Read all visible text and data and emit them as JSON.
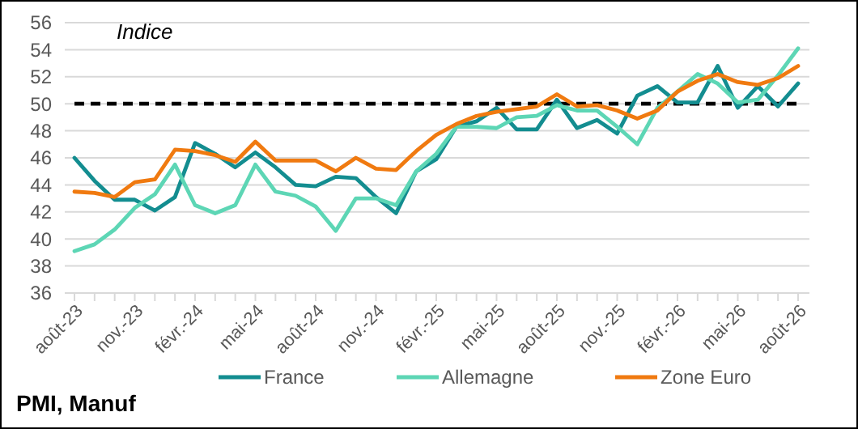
{
  "chart_data": {
    "type": "line",
    "title": "PMI, Manuf",
    "annotations": [
      "Indice"
    ],
    "categories": [
      "août-23",
      null,
      null,
      "nov.-23",
      null,
      null,
      "févr.-24",
      null,
      null,
      "mai-24",
      null,
      null,
      "août-24",
      null,
      null,
      "nov.-24",
      null,
      null,
      "févr.-25",
      null,
      null,
      "mai-25",
      null,
      null,
      "août-25",
      null,
      null,
      "nov.-25",
      null,
      null,
      "févr.-26",
      null,
      null,
      "mai-26",
      null,
      null,
      "août-26"
    ],
    "series": [
      {
        "name": "France",
        "color": "#138d90",
        "values": [
          46.0,
          44.3,
          42.9,
          42.9,
          42.1,
          43.1,
          47.1,
          46.3,
          45.3,
          46.4,
          45.3,
          44.0,
          43.9,
          44.6,
          44.5,
          43.1,
          41.9,
          45.0,
          45.9,
          48.3,
          48.7,
          49.7,
          48.1,
          48.1,
          50.3,
          48.2,
          48.8,
          47.8,
          50.6,
          51.3,
          50.1,
          50.1,
          52.8,
          49.7,
          51.3,
          49.8,
          51.5
        ]
      },
      {
        "name": "Allemagne",
        "color": "#5dd6b5",
        "values": [
          39.1,
          39.6,
          40.7,
          42.3,
          43.3,
          45.5,
          42.5,
          41.9,
          42.5,
          45.5,
          43.5,
          43.2,
          42.4,
          40.6,
          43.0,
          43.0,
          42.5,
          45.0,
          46.3,
          48.3,
          48.3,
          48.2,
          49.0,
          49.1,
          49.9,
          49.5,
          49.5,
          48.3,
          47.0,
          49.7,
          50.9,
          52.2,
          51.5,
          50.1,
          50.3,
          52.1,
          54.1
        ]
      },
      {
        "name": "Zone Euro",
        "color": "#f07a10",
        "values": [
          43.5,
          43.4,
          43.1,
          44.2,
          44.4,
          46.6,
          46.5,
          46.2,
          45.7,
          47.2,
          45.8,
          45.8,
          45.8,
          45.0,
          46.0,
          45.2,
          45.1,
          46.5,
          47.7,
          48.5,
          49.1,
          49.4,
          49.6,
          49.8,
          50.7,
          49.8,
          49.9,
          49.5,
          48.9,
          49.5,
          50.9,
          51.7,
          52.2,
          51.6,
          51.4,
          51.9,
          52.8
        ]
      }
    ],
    "ylim": [
      36,
      56
    ],
    "yticks": [
      36,
      38,
      40,
      42,
      44,
      46,
      48,
      50,
      52,
      54,
      56
    ],
    "grid": "y",
    "legend": "bottom",
    "line_style": "solid",
    "marker": "none",
    "ref_lines": [
      {
        "axis": "y",
        "value": 50,
        "color": "#000000",
        "line_style": "dashed"
      }
    ]
  }
}
